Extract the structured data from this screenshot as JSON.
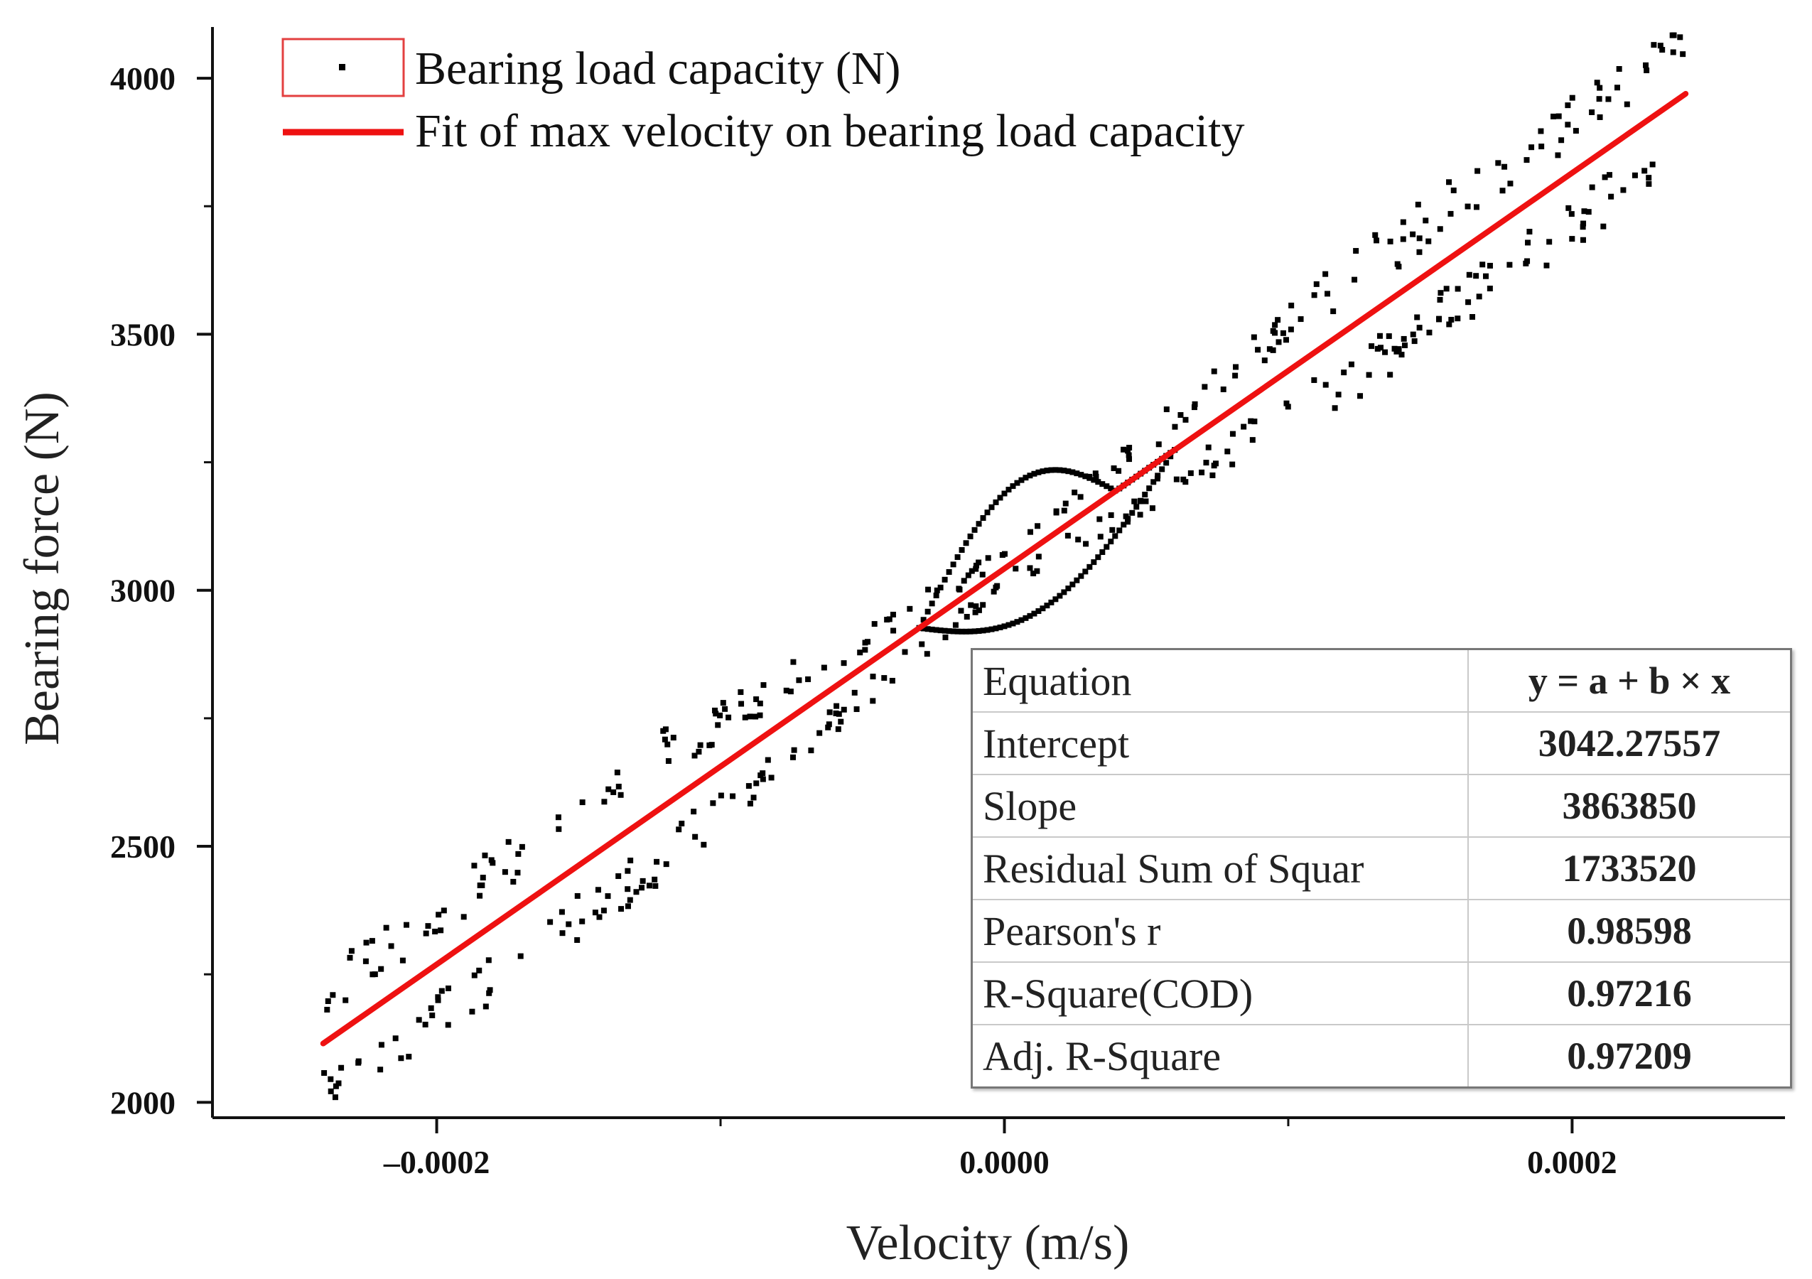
{
  "chart_data": {
    "type": "scatter",
    "title": "",
    "xlabel": "Velocity (m/s)",
    "ylabel": "Bearing force (N)",
    "xlim": [
      -0.000279,
      0.000275
    ],
    "ylim": [
      1970,
      4100
    ],
    "x_ticks": [
      -0.0002,
      0.0,
      0.0002
    ],
    "x_tick_labels": [
      "–0.0002",
      "0.0000",
      "0.0002"
    ],
    "y_ticks": [
      2000,
      2500,
      3000,
      3500,
      4000
    ],
    "y_tick_labels": [
      "2000",
      "2500",
      "3000",
      "3500",
      "4000"
    ],
    "grid": false,
    "legend_position": "top-left",
    "series": [
      {
        "name": "Bearing load capacity (N)",
        "kind": "scatter",
        "color": "#000000",
        "x_range": [
          -0.00024,
          0.00024
        ],
        "center_loop": {
          "x_range": [
            -3e-05,
            4e-05
          ],
          "description_points": 60
        }
      },
      {
        "name": "Fit of max velocity on bearing load capacity",
        "kind": "line",
        "color": "#ee1111",
        "x": [
          -0.00024,
          0.00024
        ],
        "y": [
          2114.95,
          3969.6
        ]
      }
    ],
    "fit_table": {
      "rows": [
        {
          "label": "Equation",
          "value": "y = a + b × x"
        },
        {
          "label": "Intercept",
          "value": "3042.27557"
        },
        {
          "label": "Slope",
          "value": "3863850"
        },
        {
          "label": "Residual Sum of Squar",
          "value": "1733520"
        },
        {
          "label": "Pearson's r",
          "value": "0.98598"
        },
        {
          "label": "R-Square(COD)",
          "value": "0.97216"
        },
        {
          "label": "Adj. R-Square",
          "value": "0.97209"
        }
      ]
    },
    "intercept": 3042.27557,
    "slope": 3863850
  }
}
